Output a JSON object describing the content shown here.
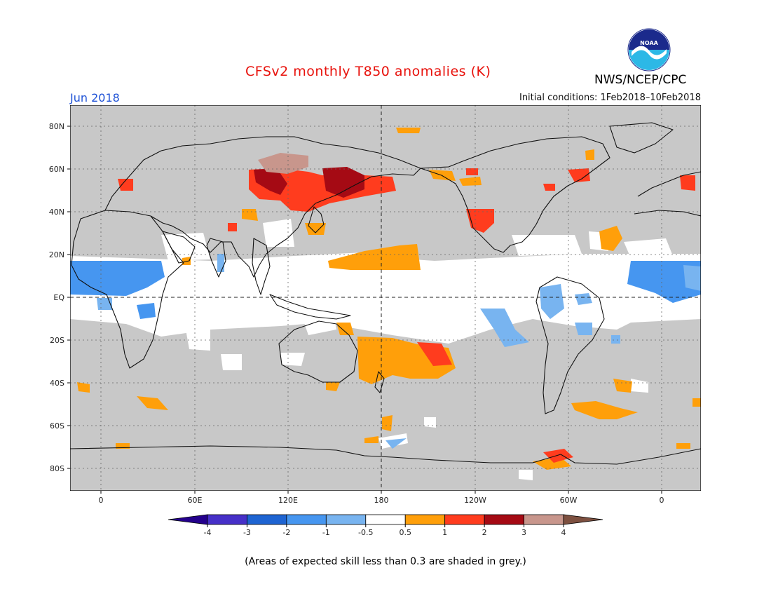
{
  "header": {
    "title": "CFSv2 monthly T850 anomalies (K)",
    "month": "Jun 2018",
    "initial_conditions": "Initial conditions: 1Feb2018–10Feb2018",
    "agency": "NWS/NCEP/CPC",
    "logo_text": "NOAA"
  },
  "map": {
    "lat_labels": [
      "80N",
      "60N",
      "40N",
      "20N",
      "EQ",
      "20S",
      "40S",
      "60S",
      "80S"
    ],
    "lon_labels": [
      "0",
      "60E",
      "120E",
      "180",
      "120W",
      "60W",
      "0"
    ],
    "colors": {
      "grey": "#c8c8c8",
      "white": "#ffffff",
      "light_blue": "#78b4f0",
      "blue": "#4696f0",
      "orange": "#ff9f0a",
      "red": "#ff3c1e",
      "dark_red": "#a50a14",
      "tan": "#c8968c"
    }
  },
  "colorbar": {
    "tick_labels": [
      "-4",
      "-3",
      "-2",
      "-1",
      "-0.5",
      "0.5",
      "1",
      "2",
      "3",
      "4"
    ],
    "colors": [
      "#24008c",
      "#4630c8",
      "#1e64d2",
      "#4696f0",
      "#78b4f0",
      "#ffffff",
      "#ff9f0a",
      "#ff3c1e",
      "#a50a14",
      "#c8968c",
      "#7d5040"
    ]
  },
  "footnote": "(Areas of expected skill less than 0.3 are shaded in grey.)"
}
